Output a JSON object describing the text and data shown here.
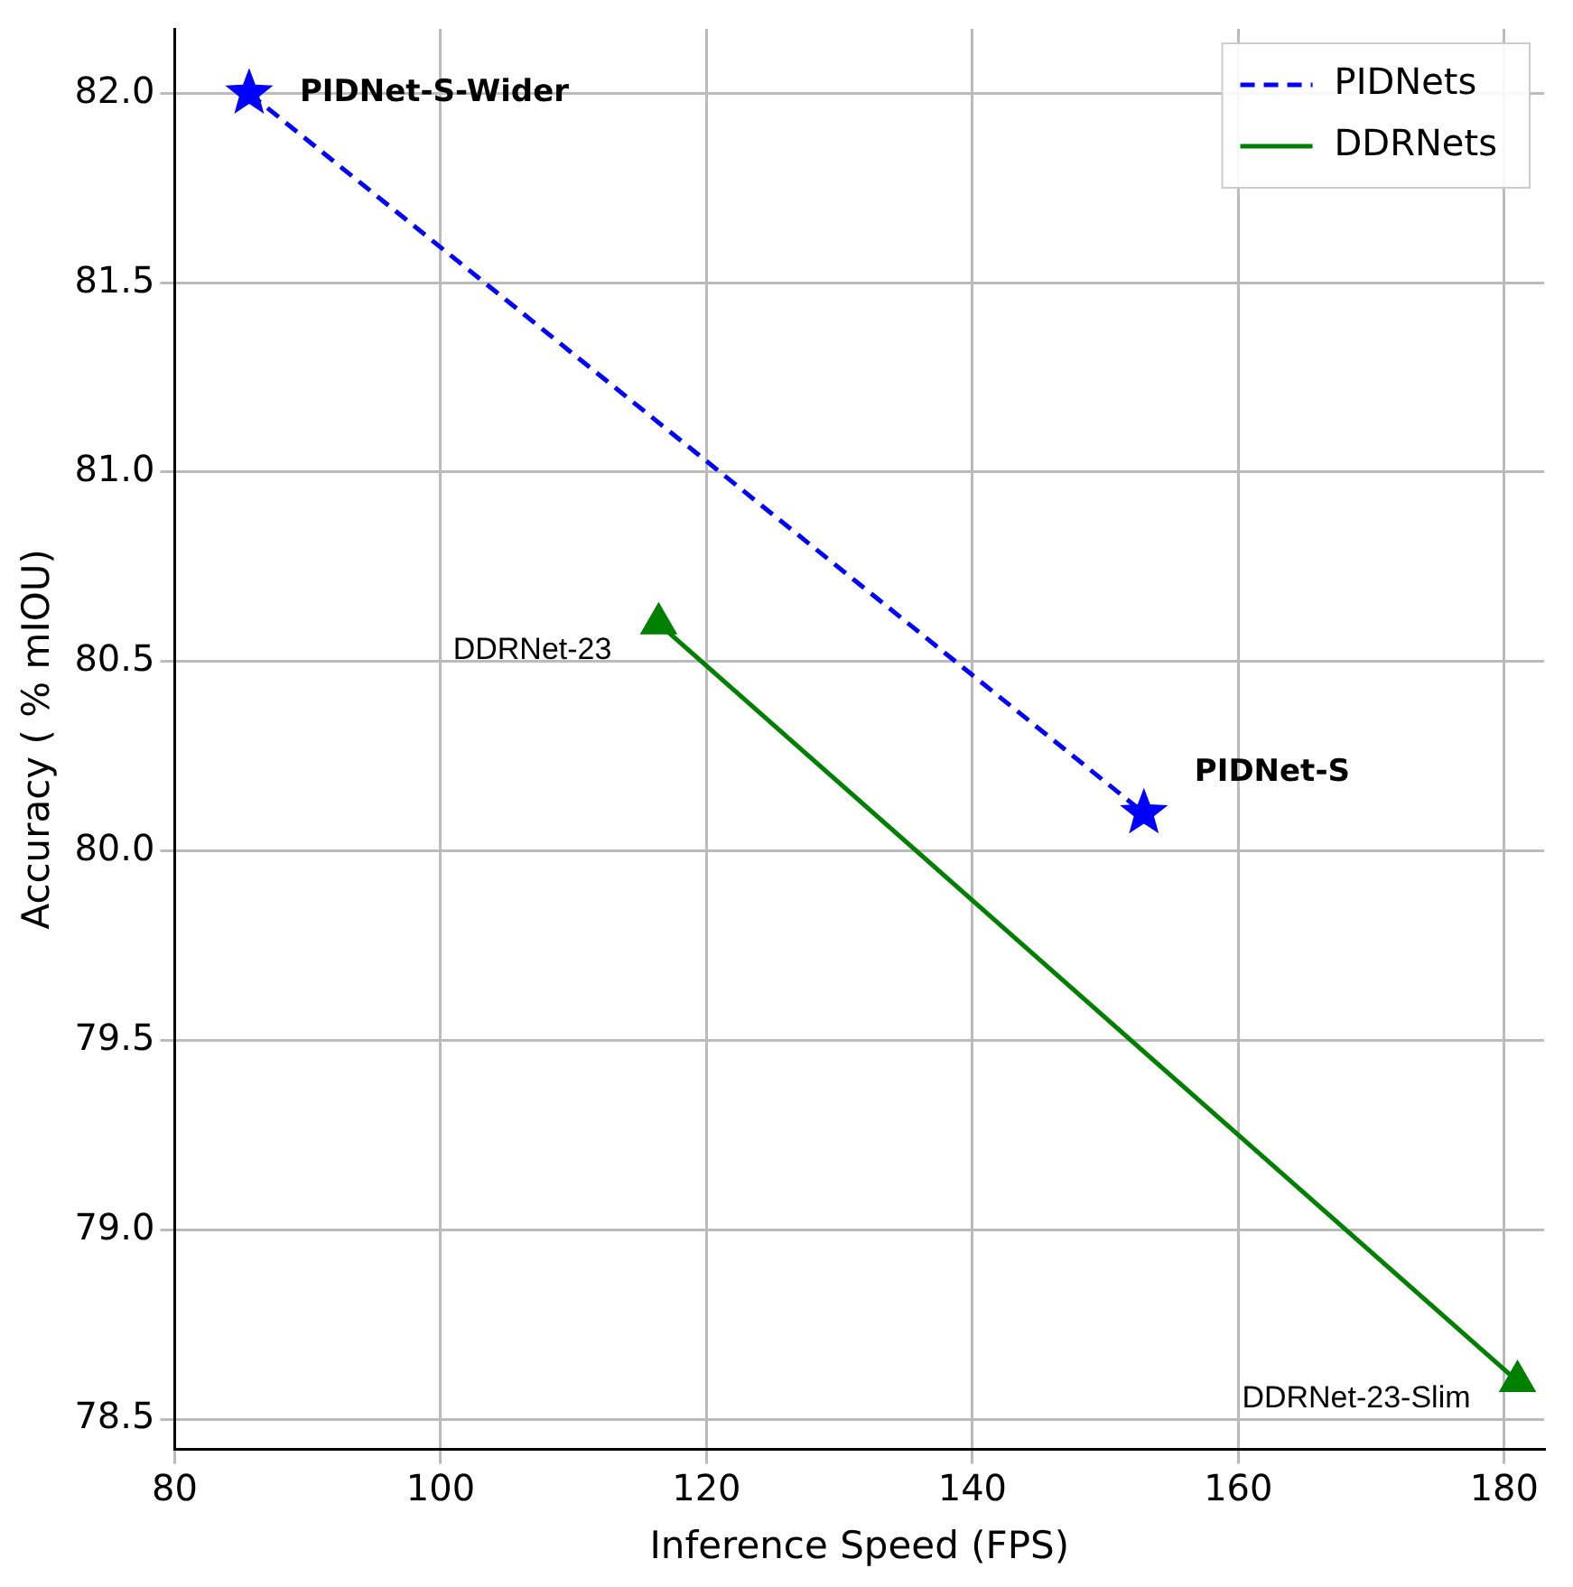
{
  "chart_data": {
    "type": "line",
    "xlabel": "Inference Speed (FPS)",
    "ylabel": "Accuracy ( % mIOU)",
    "series": [
      {
        "name": "PIDNets",
        "color": "#0000ff",
        "x": [
          85.6,
          152.9
        ],
        "values": [
          82.0,
          80.1
        ],
        "marker": "star",
        "line_style": "dashed"
      },
      {
        "name": "DDRNets",
        "color": "#008000",
        "x": [
          116.4,
          181
        ],
        "values": [
          80.6,
          78.6
        ],
        "marker": "triangle",
        "line_style": "solid"
      }
    ],
    "xlim": [
      80,
      183
    ],
    "xticks": [
      80,
      100,
      120,
      140,
      160,
      180
    ],
    "ylim": [
      78.42,
      82.17
    ],
    "yticks": [
      78.5,
      {
        "value": 79,
        "label": "79.0"
      },
      79.5,
      {
        "value": 80,
        "label": "80.0"
      },
      80.5,
      {
        "value": 81,
        "label": "81.0"
      },
      81.5,
      {
        "value": 82,
        "label": "82.0"
      }
    ],
    "annotations": [
      {
        "text": "PIDNet-S-Wider",
        "x": 85.6,
        "y": 82.0
      },
      {
        "text": "PIDNet-S",
        "x": 152.9,
        "y": 80.1
      },
      {
        "text": "DDRNet-23",
        "x": 116.4,
        "y": 80.6
      },
      {
        "text": "DDRNet-23-Slim",
        "x": 181,
        "y": 78.6
      }
    ],
    "grid": true,
    "legend": "top right"
  }
}
